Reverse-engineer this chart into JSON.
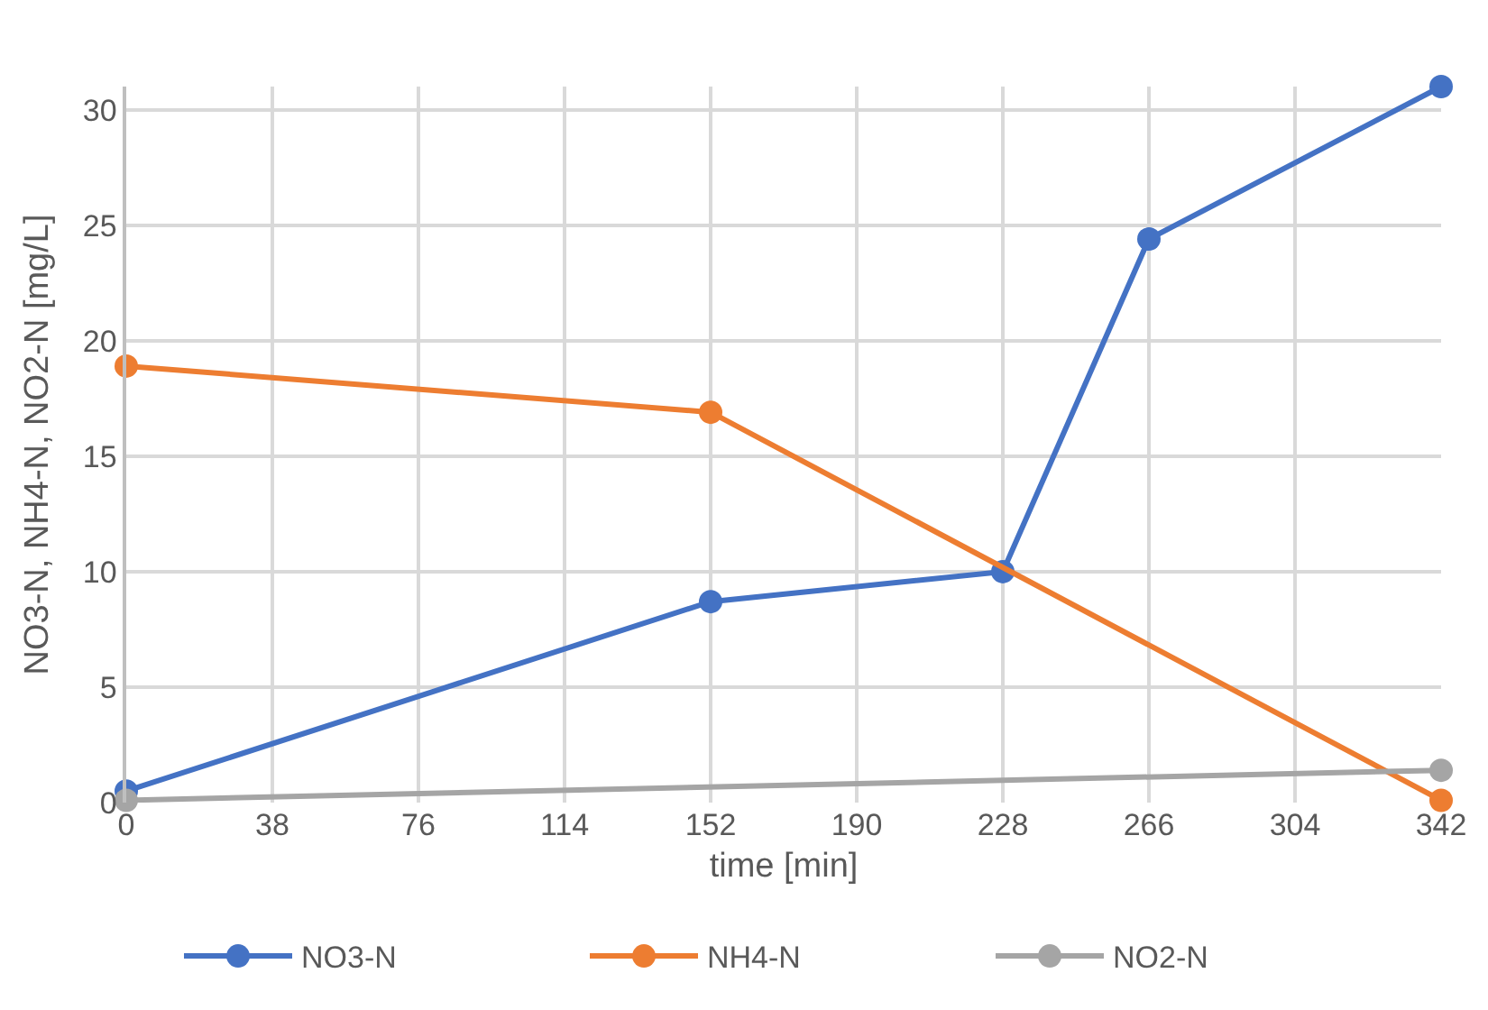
{
  "chart_data": {
    "type": "line",
    "xlabel": "time [min]",
    "ylabel": "NO3-N, NH4-N, NO2-N [mg/L]",
    "xlim": [
      0,
      342
    ],
    "xticks": [
      0,
      38,
      76,
      114,
      152,
      190,
      228,
      266,
      304,
      342
    ],
    "ylim": [
      0,
      31
    ],
    "yticks": [
      0,
      5,
      10,
      15,
      20,
      25,
      30
    ],
    "grid": true,
    "legend": "bottom",
    "marker": "circle",
    "line_style": "solid",
    "series": [
      {
        "name": "NO3-N",
        "color": "#4472c4",
        "x": [
          0,
          152,
          228,
          266,
          342
        ],
        "values": [
          0.5,
          8.7,
          10.0,
          24.4,
          31.0
        ]
      },
      {
        "name": "NH4-N",
        "color": "#ed7d31",
        "x": [
          0,
          152,
          342
        ],
        "values": [
          18.9,
          16.9,
          0.1
        ]
      },
      {
        "name": "NO2-N",
        "color": "#a5a5a5",
        "x": [
          0,
          342
        ],
        "values": [
          0.1,
          1.4
        ]
      }
    ]
  }
}
